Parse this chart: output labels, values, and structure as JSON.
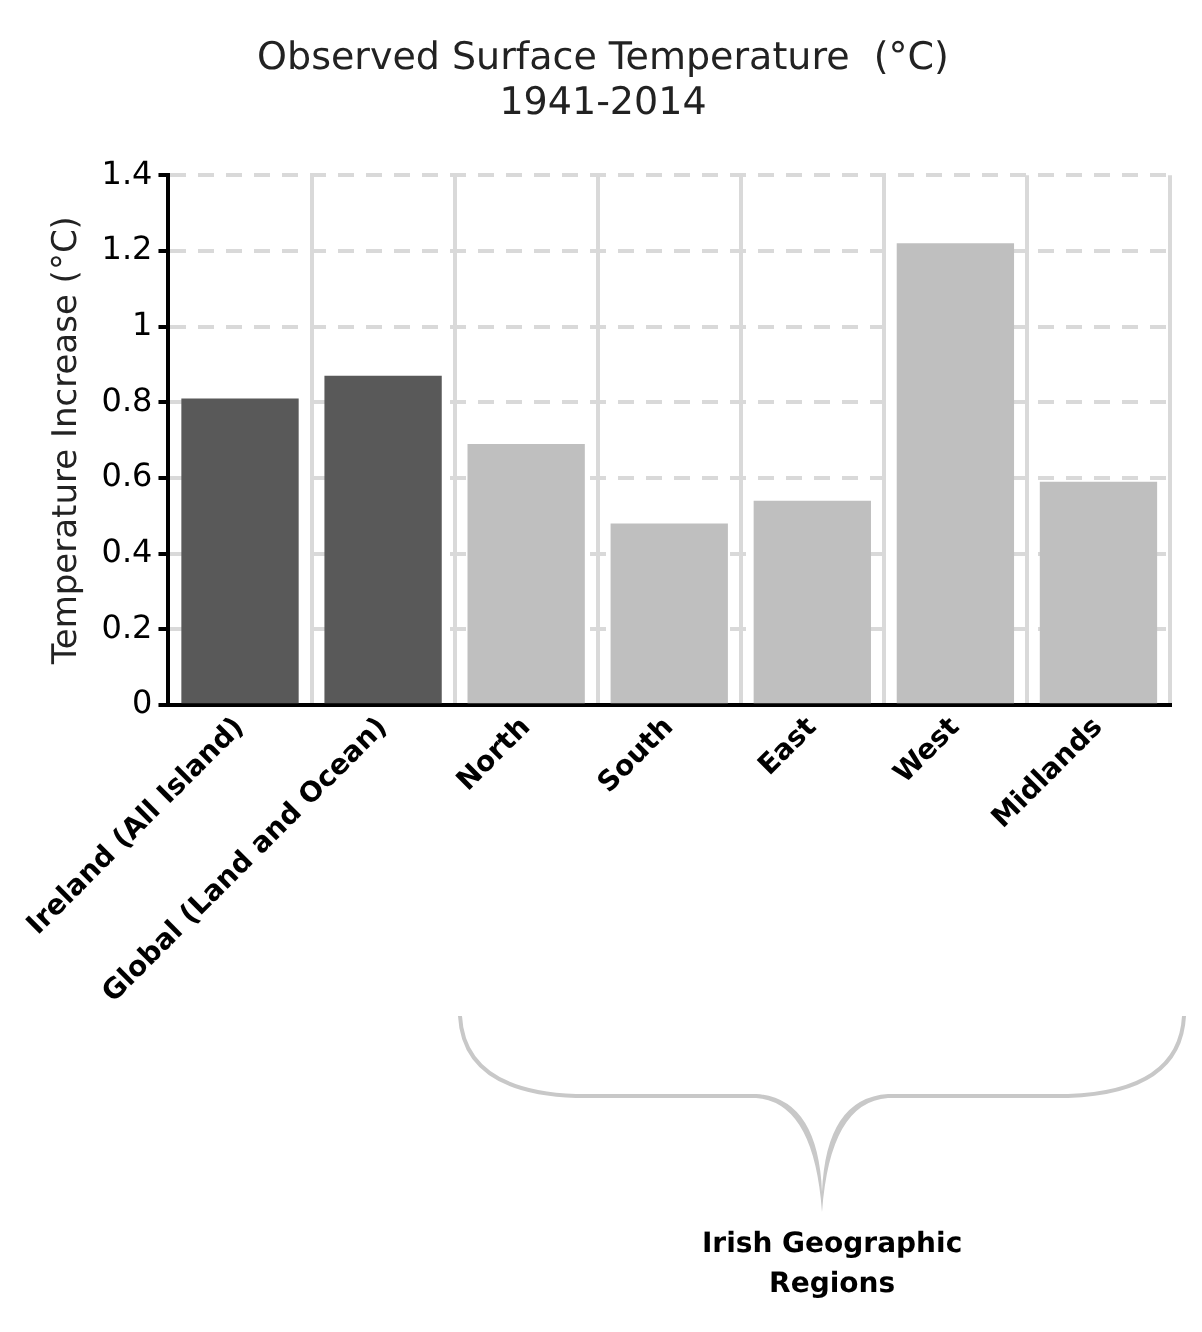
{
  "chart_data": {
    "type": "bar",
    "title": "Observed Surface Temperature  (°C)",
    "subtitle": "1941-2014",
    "ylabel": "Temperature Increase (°C)",
    "categories": [
      "Ireland (All Island)",
      "Global (Land and Ocean)",
      "North",
      "South",
      "East",
      "West",
      "Midlands"
    ],
    "values": [
      0.81,
      0.87,
      0.69,
      0.48,
      0.54,
      1.22,
      0.59
    ],
    "colors": [
      "#595959",
      "#595959",
      "#bfbfbf",
      "#bfbfbf",
      "#bfbfbf",
      "#bfbfbf",
      "#bfbfbf"
    ],
    "ylim": [
      0,
      1.4
    ],
    "yticks": [
      0,
      0.2,
      0.4,
      0.6,
      0.8,
      1,
      1.2,
      1.4
    ],
    "grid": true,
    "annotations": [
      "Irish Geographic Regions"
    ]
  }
}
